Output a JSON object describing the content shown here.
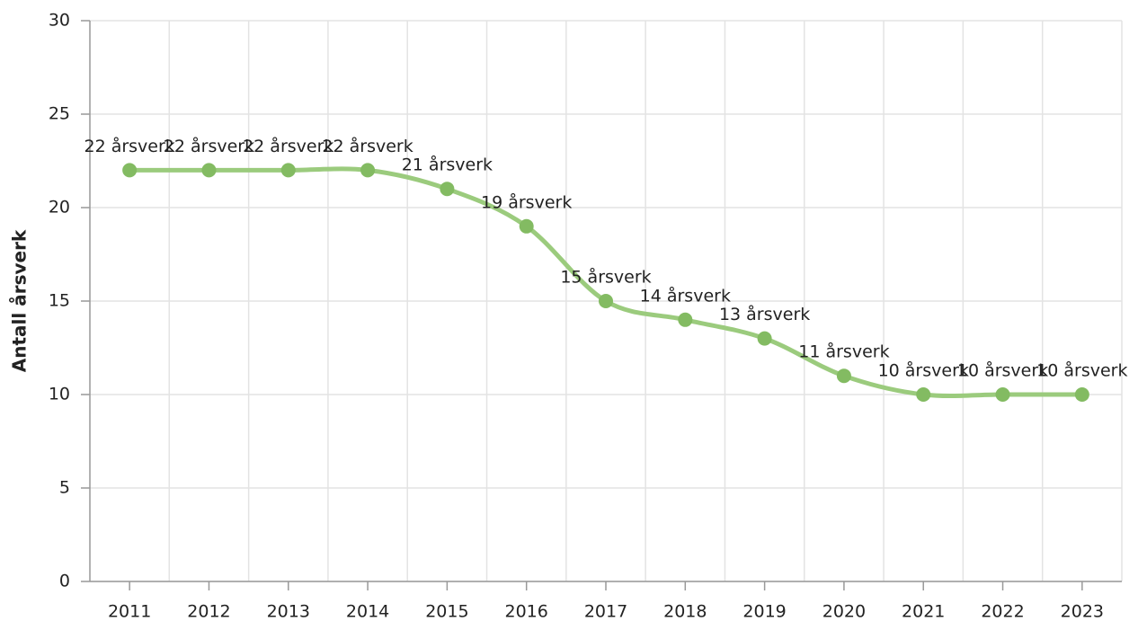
{
  "chart_data": {
    "type": "line",
    "y_label": "Antall årsverk",
    "categories": [
      "2011",
      "2012",
      "2013",
      "2014",
      "2015",
      "2016",
      "2017",
      "2018",
      "2019",
      "2020",
      "2021",
      "2022",
      "2023"
    ],
    "values": [
      22,
      22,
      22,
      22,
      21,
      19,
      15,
      14,
      13,
      11,
      10,
      10,
      10
    ],
    "value_labels": [
      "22 årsverk",
      "22 årsverk",
      "22 årsverk",
      "22 årsverk",
      "21 årsverk",
      "19 årsverk",
      "15 årsverk",
      "14 årsverk",
      "13 årsverk",
      "11 årsverk",
      "10 årsverk",
      "10 årsverk",
      "10 årsverk"
    ],
    "color": "#9bcb7d",
    "marker_color": "#83bb62",
    "ylim": [
      0,
      30
    ],
    "yticks": [
      0,
      5,
      10,
      15,
      20,
      25,
      30
    ],
    "grid": true
  }
}
